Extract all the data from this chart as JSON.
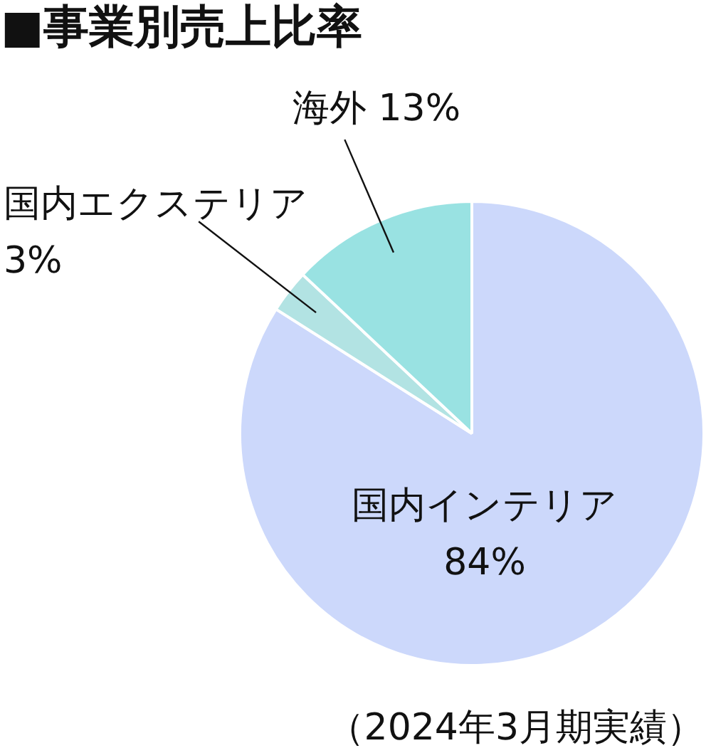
{
  "chart_data": {
    "type": "pie",
    "title": "■事業別売上比率",
    "categories": [
      "国内インテリア",
      "国内エクステリア",
      "海外"
    ],
    "values": [
      84,
      3,
      13
    ],
    "colors": [
      "#ccd8fb",
      "#b2e3e3",
      "#99e2e2"
    ],
    "value_labels": [
      "84%",
      "3%",
      "13%"
    ],
    "annotations": [
      "（2024年3月期実績）"
    ]
  }
}
